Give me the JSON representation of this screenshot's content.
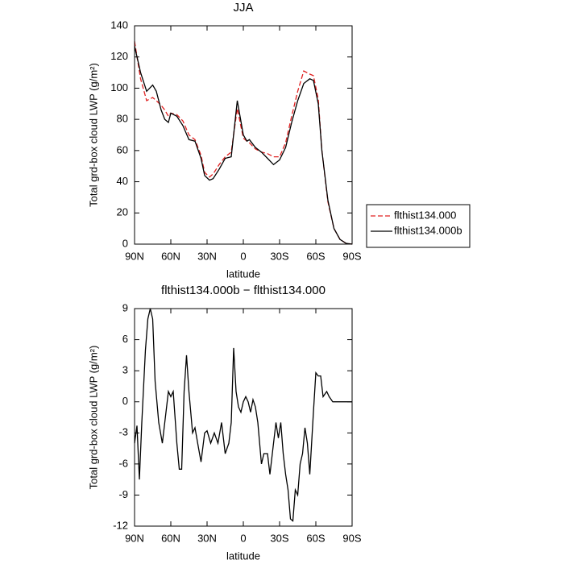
{
  "chart_data": [
    {
      "type": "line",
      "title": "JJA",
      "xlabel": "latitude",
      "ylabel": "Total grd-box cloud LWP (g/m²)",
      "x": [
        90,
        85,
        80,
        75,
        72,
        68,
        65,
        62,
        60,
        55,
        50,
        45,
        40,
        35,
        32,
        28,
        25,
        20,
        15,
        10,
        5,
        0,
        -3,
        -5,
        -10,
        -15,
        -20,
        -25,
        -30,
        -35,
        -40,
        -45,
        -50,
        -55,
        -58,
        -62,
        -65,
        -70,
        -75,
        -80,
        -85,
        -90
      ],
      "series": [
        {
          "name": "flthist134.000",
          "color": "#e02020",
          "dash": "dashed",
          "values": [
            130,
            106,
            92,
            94,
            92,
            89,
            86,
            82,
            84,
            83,
            79,
            70,
            67,
            57,
            46,
            43,
            45,
            51,
            56,
            59,
            87,
            68,
            66,
            65,
            61,
            59,
            58,
            56,
            56,
            65,
            82,
            98,
            111,
            109,
            108,
            93,
            60,
            27,
            10,
            3,
            0.5,
            0
          ]
        },
        {
          "name": "flthist134.000b",
          "color": "#000000",
          "dash": "solid",
          "values": [
            127,
            110,
            98,
            102,
            98,
            86,
            80,
            78,
            84,
            82,
            76,
            67,
            66,
            55,
            44,
            41,
            42,
            48,
            55,
            56,
            92,
            70,
            66,
            67,
            62,
            59,
            55,
            51,
            54,
            62,
            78,
            92,
            103,
            106,
            105,
            90,
            60,
            28,
            10,
            3,
            0.5,
            0
          ]
        }
      ],
      "xlim": [
        90,
        -90
      ],
      "xticks": [
        {
          "value": 90,
          "label": "90N"
        },
        {
          "value": 60,
          "label": "60N"
        },
        {
          "value": 30,
          "label": "30N"
        },
        0,
        {
          "value": -30,
          "label": "30S"
        },
        {
          "value": -60,
          "label": "60S"
        },
        {
          "value": -90,
          "label": "90S"
        }
      ],
      "ylim": [
        0,
        140
      ],
      "yticks": [
        0,
        20,
        40,
        60,
        80,
        100,
        120,
        140
      ],
      "legend": "right"
    },
    {
      "type": "line",
      "title": "flthist134.000b − flthist134.000",
      "xlabel": "latitude",
      "ylabel": "Total grd-box cloud LWP (g/m²)",
      "x": [
        90,
        88,
        86,
        84,
        81,
        79,
        77,
        75,
        73,
        70,
        67,
        65,
        62,
        60,
        58,
        55,
        53,
        51,
        49,
        47,
        45,
        42,
        40,
        37,
        35,
        32,
        30,
        27,
        24,
        21,
        18,
        15,
        12,
        10,
        8,
        6,
        4,
        2,
        0,
        -2,
        -4,
        -6,
        -8,
        -10,
        -12,
        -15,
        -17,
        -20,
        -22,
        -25,
        -27,
        -29,
        -31,
        -33,
        -35,
        -37,
        -39,
        -41,
        -43,
        -45,
        -47,
        -49,
        -51,
        -53,
        -55,
        -58,
        -60,
        -62,
        -64,
        -66,
        -69,
        -71,
        -74,
        -78,
        -84,
        -90
      ],
      "values": [
        -4,
        -2.3,
        -7.5,
        -2,
        5,
        8,
        9,
        8,
        2,
        -2,
        -4,
        -2,
        1,
        0.5,
        1,
        -4,
        -6.5,
        -6.5,
        1,
        4.5,
        1,
        -3,
        -2.5,
        -4.5,
        -5.8,
        -3,
        -2.8,
        -4,
        -3,
        -4,
        -2,
        -5,
        -4,
        -2,
        5.2,
        1,
        -0.5,
        -1,
        0,
        0.5,
        0,
        -1,
        0.2,
        -0.5,
        -2,
        -6,
        -5,
        -5,
        -7,
        -4,
        -2,
        -3.5,
        -2,
        -5,
        -7,
        -8.5,
        -11.3,
        -11.5,
        -8.5,
        -9,
        -6,
        -5,
        -2.5,
        -4,
        -7,
        -1,
        2.8,
        2.5,
        2.5,
        0.5,
        1,
        0.5,
        0,
        0,
        0,
        0
      ],
      "color": "#000000",
      "xlim": [
        90,
        -90
      ],
      "xticks": [
        {
          "value": 90,
          "label": "90N"
        },
        {
          "value": 60,
          "label": "60N"
        },
        {
          "value": 30,
          "label": "30N"
        },
        0,
        {
          "value": -30,
          "label": "30S"
        },
        {
          "value": -60,
          "label": "60S"
        },
        {
          "value": -90,
          "label": "90S"
        }
      ],
      "ylim": [
        -12,
        9
      ],
      "yticks": [
        -12,
        -9,
        -6,
        -3,
        0,
        3,
        6,
        9
      ]
    }
  ]
}
